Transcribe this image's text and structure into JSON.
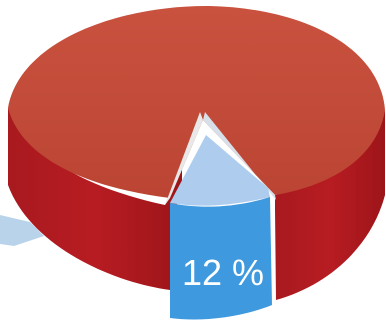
{
  "chart_data": {
    "type": "pie",
    "style": "3d",
    "slices": [
      {
        "label": "",
        "value": 88,
        "color": "#c0392b"
      },
      {
        "label": "12 %",
        "value": 12,
        "color": "#3f99de"
      }
    ],
    "title": "",
    "legend": "none"
  }
}
